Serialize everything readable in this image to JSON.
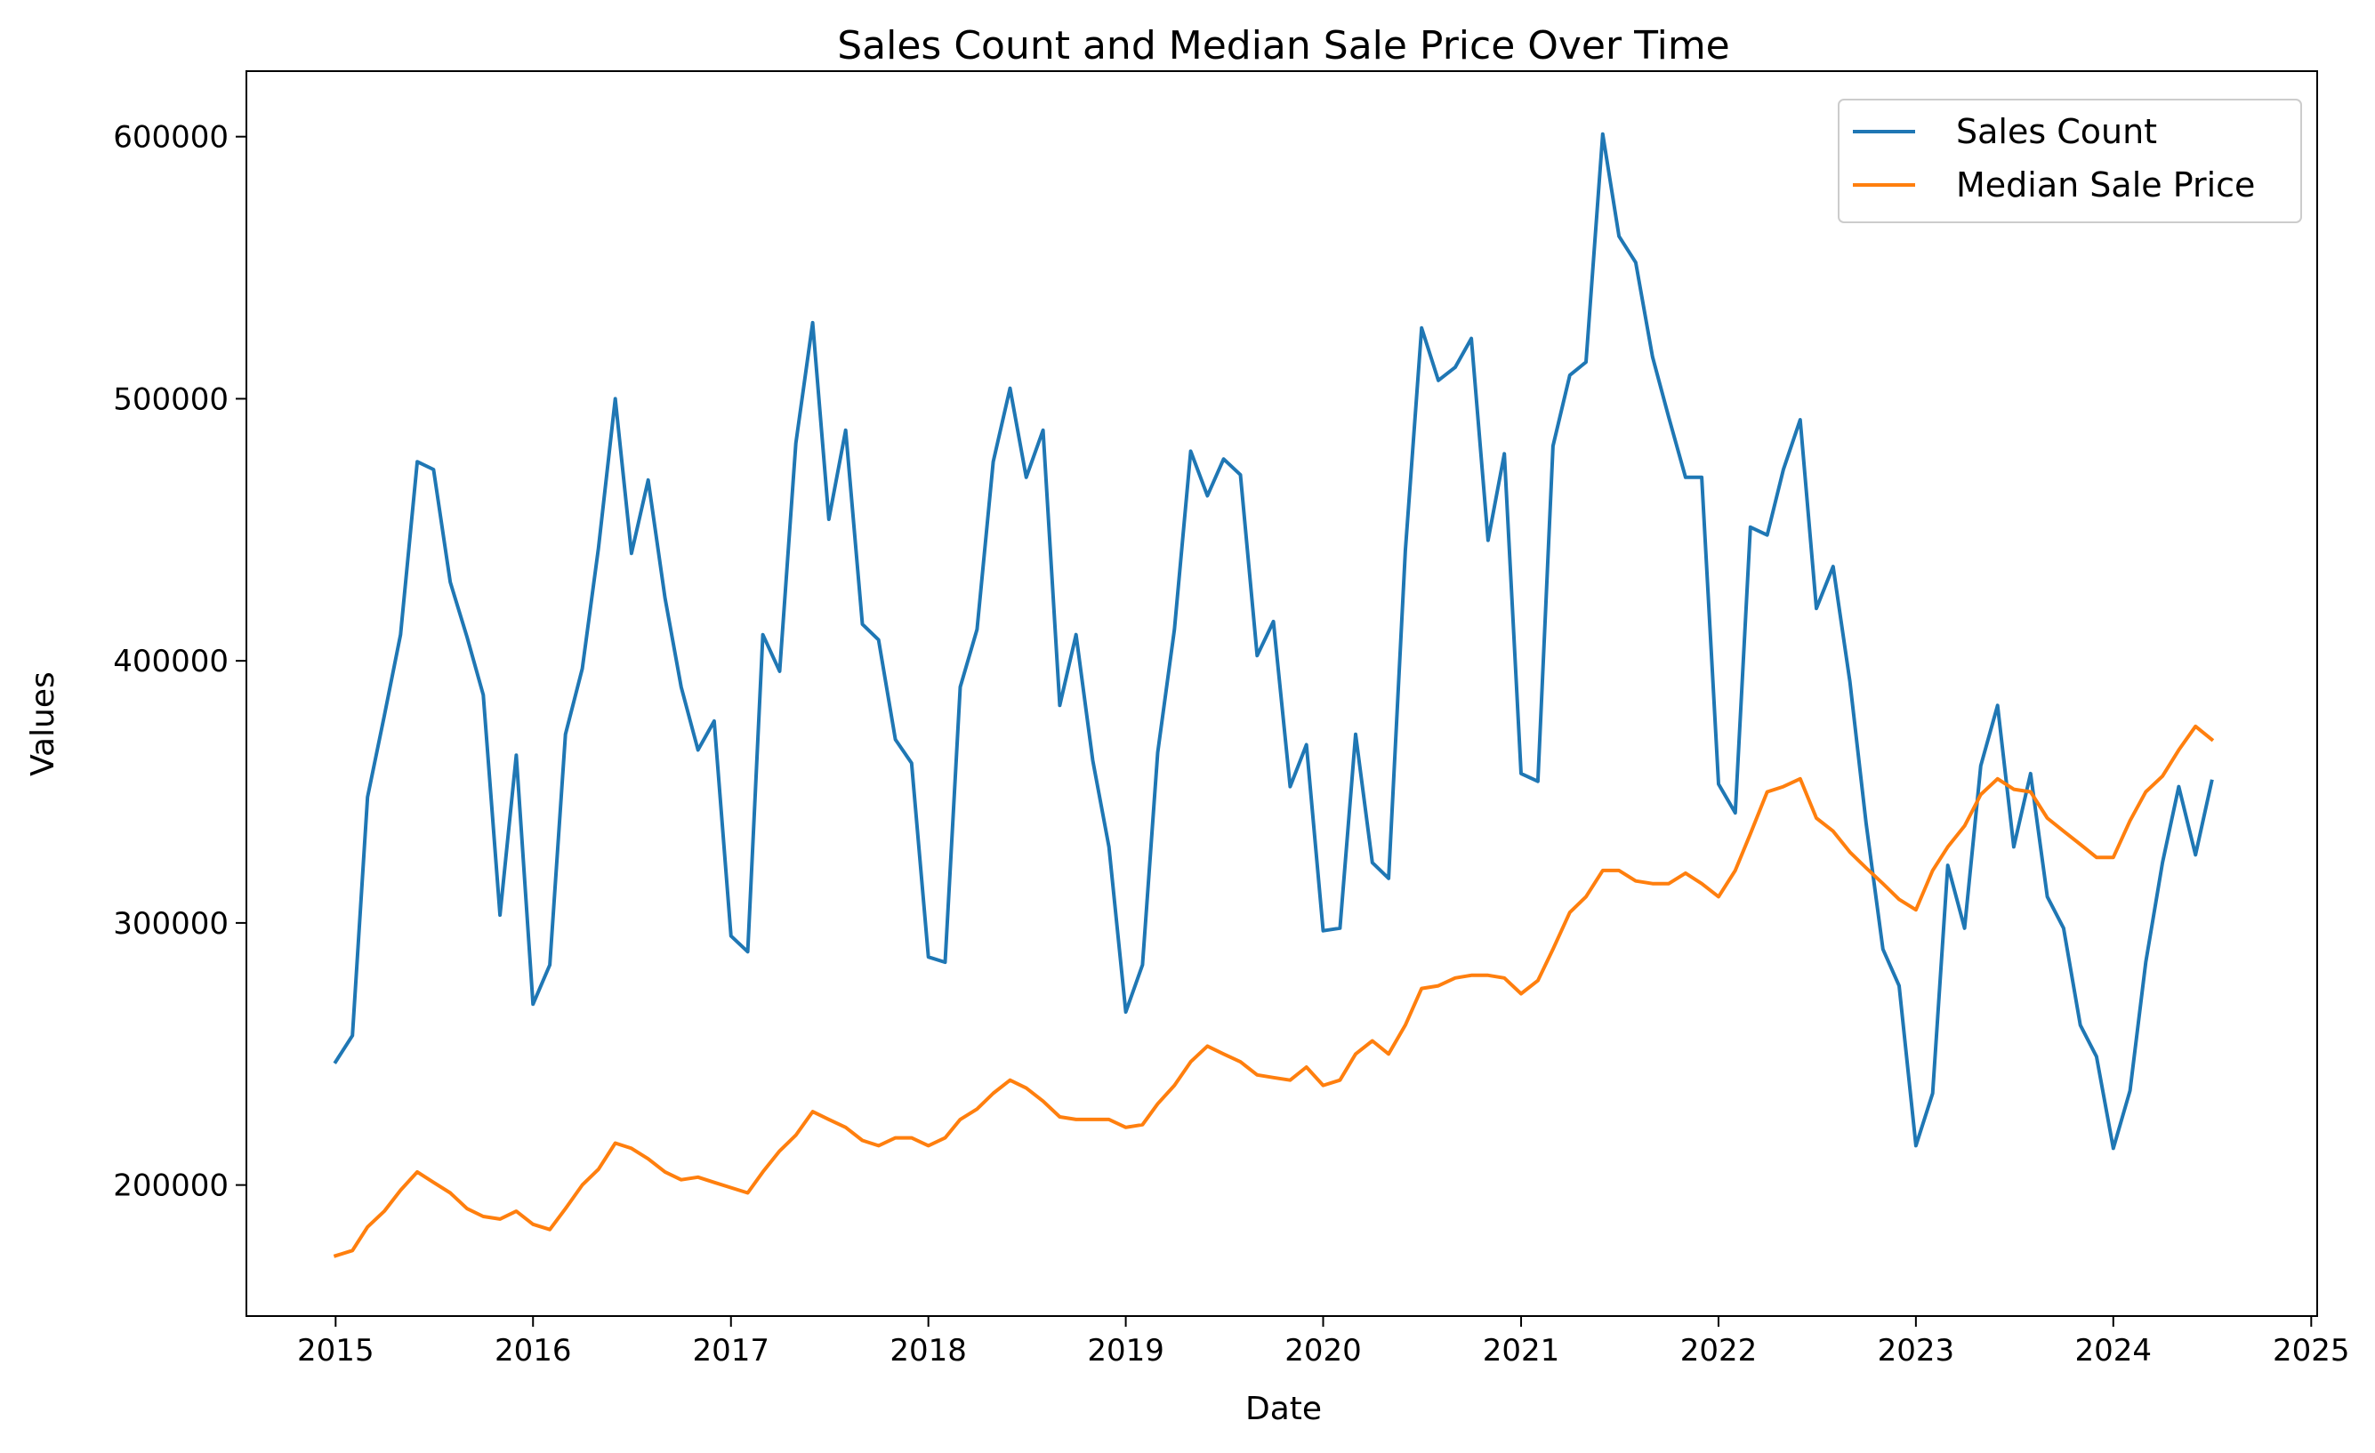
{
  "chart_data": {
    "type": "line",
    "title": "Sales Count and Median Sale Price Over Time",
    "xlabel": "Date",
    "ylabel": "Values",
    "xlim": [
      "2014-07-20",
      "2025-01-12"
    ],
    "ylim": [
      150000,
      625000
    ],
    "x_ticks": [
      "2015",
      "2016",
      "2017",
      "2018",
      "2019",
      "2020",
      "2021",
      "2022",
      "2023",
      "2024",
      "2025"
    ],
    "y_ticks": [
      200000,
      300000,
      400000,
      500000,
      600000
    ],
    "y_tick_labels": [
      "200000",
      "300000",
      "400000",
      "500000",
      "600000"
    ],
    "grid": false,
    "legend_position": "top-right",
    "x": [
      "2015-01",
      "2015-02",
      "2015-03",
      "2015-04",
      "2015-05",
      "2015-06",
      "2015-07",
      "2015-08",
      "2015-09",
      "2015-10",
      "2015-11",
      "2015-12",
      "2016-01",
      "2016-02",
      "2016-03",
      "2016-04",
      "2016-05",
      "2016-06",
      "2016-07",
      "2016-08",
      "2016-09",
      "2016-10",
      "2016-11",
      "2016-12",
      "2017-01",
      "2017-02",
      "2017-03",
      "2017-04",
      "2017-05",
      "2017-06",
      "2017-07",
      "2017-08",
      "2017-09",
      "2017-10",
      "2017-11",
      "2017-12",
      "2018-01",
      "2018-02",
      "2018-03",
      "2018-04",
      "2018-05",
      "2018-06",
      "2018-07",
      "2018-08",
      "2018-09",
      "2018-10",
      "2018-11",
      "2018-12",
      "2019-01",
      "2019-02",
      "2019-03",
      "2019-04",
      "2019-05",
      "2019-06",
      "2019-07",
      "2019-08",
      "2019-09",
      "2019-10",
      "2019-11",
      "2019-12",
      "2020-01",
      "2020-02",
      "2020-03",
      "2020-04",
      "2020-05",
      "2020-06",
      "2020-07",
      "2020-08",
      "2020-09",
      "2020-10",
      "2020-11",
      "2020-12",
      "2021-01",
      "2021-02",
      "2021-03",
      "2021-04",
      "2021-05",
      "2021-06",
      "2021-07",
      "2021-08",
      "2021-09",
      "2021-10",
      "2021-11",
      "2021-12",
      "2022-01",
      "2022-02",
      "2022-03",
      "2022-04",
      "2022-05",
      "2022-06",
      "2022-07",
      "2022-08",
      "2022-09",
      "2022-10",
      "2022-11",
      "2022-12",
      "2023-01",
      "2023-02",
      "2023-03",
      "2023-04",
      "2023-05",
      "2023-06",
      "2023-07",
      "2023-08",
      "2023-09",
      "2023-10",
      "2023-11",
      "2023-12",
      "2024-01",
      "2024-02",
      "2024-03",
      "2024-04",
      "2024-05",
      "2024-06",
      "2024-07"
    ],
    "series": [
      {
        "name": "Sales Count",
        "color": "#1f77b4",
        "values": [
          247000,
          257000,
          348000,
          379000,
          410000,
          476000,
          473000,
          430000,
          409000,
          387000,
          303000,
          364000,
          269000,
          284000,
          372000,
          397000,
          443000,
          500000,
          441000,
          469000,
          424000,
          390000,
          366000,
          377000,
          295000,
          289000,
          410000,
          396000,
          483000,
          529000,
          454000,
          488000,
          414000,
          408000,
          370000,
          361000,
          287000,
          285000,
          390000,
          412000,
          476000,
          504000,
          470000,
          488000,
          383000,
          410000,
          362000,
          329000,
          266000,
          284000,
          365000,
          412000,
          480000,
          463000,
          477000,
          471000,
          402000,
          415000,
          352000,
          368000,
          297000,
          298000,
          372000,
          323000,
          317000,
          442000,
          527000,
          507000,
          512000,
          523000,
          446000,
          479000,
          357000,
          354000,
          482000,
          509000,
          514000,
          601000,
          562000,
          552000,
          516000,
          493000,
          470000,
          470000,
          353000,
          342000,
          451000,
          448000,
          473000,
          492000,
          420000,
          436000,
          392000,
          338000,
          290000,
          276000,
          215000,
          235000,
          322000,
          298000,
          360000,
          383000,
          329000,
          357000,
          310000,
          298000,
          261000,
          249000,
          214000,
          236000,
          285000,
          323000,
          352000,
          326000,
          354000
        ]
      },
      {
        "name": "Median Sale Price",
        "color": "#ff7f0e",
        "values": [
          173000,
          175000,
          184000,
          190000,
          198000,
          205000,
          201000,
          197000,
          191000,
          188000,
          187000,
          190000,
          185000,
          183000,
          191000,
          200000,
          206000,
          216000,
          214000,
          210000,
          205000,
          202000,
          203000,
          201000,
          199000,
          197000,
          205000,
          213000,
          219000,
          228000,
          225000,
          222000,
          217000,
          215000,
          218000,
          218000,
          215000,
          218000,
          225000,
          229000,
          235000,
          240000,
          237000,
          232000,
          226000,
          225000,
          225000,
          225000,
          222000,
          223000,
          231000,
          238000,
          247000,
          253000,
          250000,
          247000,
          242000,
          241000,
          240000,
          245000,
          238000,
          240000,
          250000,
          255000,
          250000,
          261000,
          275000,
          276000,
          279000,
          280000,
          280000,
          279000,
          273000,
          278000,
          290000,
          304000,
          310000,
          320000,
          320000,
          316000,
          315000,
          315000,
          319000,
          315000,
          310000,
          320000,
          334000,
          350000,
          352000,
          355000,
          340000,
          335000,
          327000,
          321000,
          315000,
          309000,
          305000,
          320000,
          329000,
          337000,
          349000,
          355000,
          351000,
          350000,
          340000,
          335000,
          330000,
          325000,
          325000,
          339000,
          350000,
          356000,
          366000,
          375000,
          370000
        ]
      }
    ]
  }
}
